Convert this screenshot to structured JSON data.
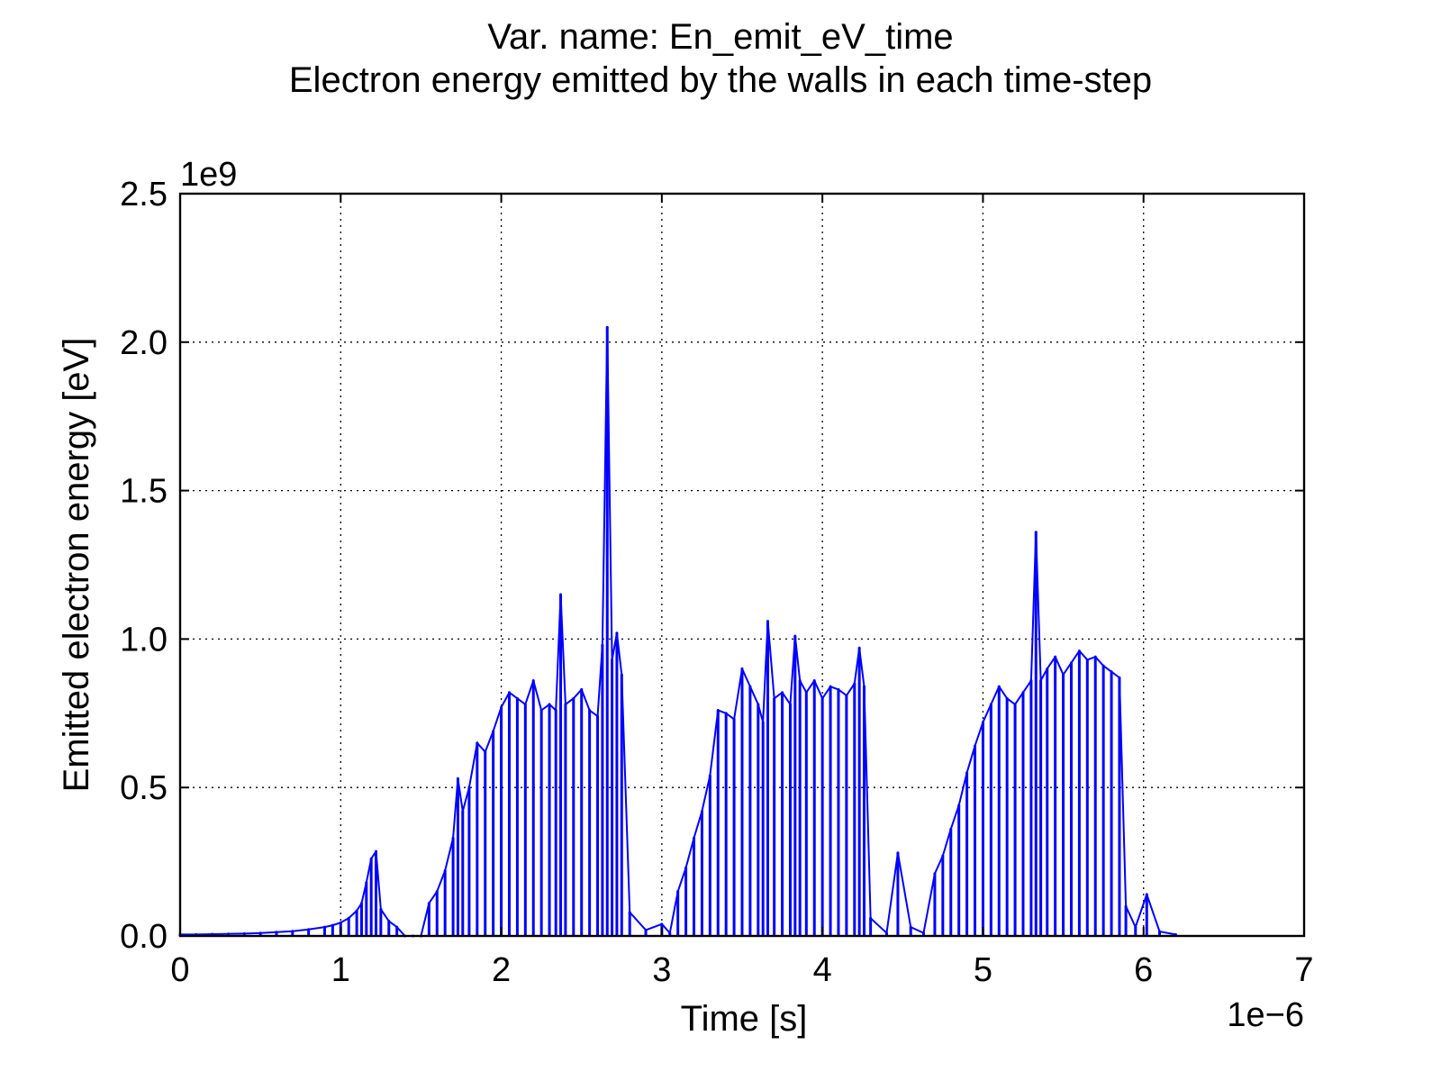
{
  "chart_data": {
    "type": "line",
    "title": "Var. name: En_emit_eV_time",
    "subtitle": "Electron energy emitted by the walls in each time-step",
    "xlabel": "Time [s]",
    "ylabel": "Emitted electron energy [eV]",
    "x_offset_label": "1e−6",
    "y_offset_label": "1e9",
    "xlim": [
      0,
      7
    ],
    "ylim": [
      0,
      2.5
    ],
    "x_ticks": [
      0,
      1,
      2,
      3,
      4,
      5,
      6,
      7
    ],
    "x_tick_labels": [
      "0",
      "1",
      "2",
      "3",
      "4",
      "5",
      "6",
      "7"
    ],
    "y_ticks": [
      0,
      0.5,
      1,
      1.5,
      2,
      2.5
    ],
    "y_tick_labels": [
      "0.0",
      "0.5",
      "1.0",
      "1.5",
      "2.0",
      "2.5"
    ],
    "grid": true,
    "series": [
      {
        "color": "#0000ff",
        "x_units": "1e-6 s",
        "y_units": "1e9 eV",
        "x": [
          0.0,
          0.1,
          0.2,
          0.3,
          0.4,
          0.5,
          0.6,
          0.7,
          0.8,
          0.9,
          0.95,
          1.0,
          1.05,
          1.1,
          1.13,
          1.16,
          1.19,
          1.22,
          1.25,
          1.3,
          1.35,
          1.4,
          1.45,
          1.5,
          1.55,
          1.6,
          1.65,
          1.7,
          1.73,
          1.76,
          1.8,
          1.85,
          1.9,
          1.95,
          2.0,
          2.05,
          2.1,
          2.15,
          2.2,
          2.25,
          2.3,
          2.34,
          2.37,
          2.4,
          2.45,
          2.5,
          2.55,
          2.6,
          2.63,
          2.66,
          2.69,
          2.72,
          2.75,
          2.8,
          2.9,
          3.0,
          3.05,
          3.1,
          3.15,
          3.2,
          3.25,
          3.3,
          3.35,
          3.4,
          3.45,
          3.5,
          3.55,
          3.6,
          3.63,
          3.66,
          3.7,
          3.75,
          3.8,
          3.83,
          3.86,
          3.9,
          3.95,
          4.0,
          4.05,
          4.1,
          4.15,
          4.2,
          4.23,
          4.26,
          4.3,
          4.4,
          4.47,
          4.55,
          4.63,
          4.7,
          4.75,
          4.8,
          4.85,
          4.9,
          4.95,
          5.0,
          5.05,
          5.1,
          5.15,
          5.2,
          5.25,
          5.3,
          5.33,
          5.36,
          5.4,
          5.45,
          5.5,
          5.55,
          5.6,
          5.65,
          5.7,
          5.75,
          5.8,
          5.85,
          5.89,
          5.95,
          6.02,
          6.1,
          6.2
        ],
        "y": [
          0.005,
          0.005,
          0.006,
          0.007,
          0.008,
          0.01,
          0.013,
          0.016,
          0.022,
          0.03,
          0.036,
          0.045,
          0.06,
          0.085,
          0.11,
          0.18,
          0.26,
          0.285,
          0.09,
          0.05,
          0.03,
          0.0,
          0.0,
          0.0,
          0.11,
          0.15,
          0.22,
          0.33,
          0.53,
          0.42,
          0.5,
          0.65,
          0.62,
          0.69,
          0.77,
          0.82,
          0.8,
          0.78,
          0.86,
          0.76,
          0.78,
          0.76,
          1.15,
          0.78,
          0.8,
          0.83,
          0.76,
          0.74,
          0.98,
          2.05,
          0.93,
          1.02,
          0.88,
          0.08,
          0.02,
          0.04,
          0.01,
          0.15,
          0.23,
          0.33,
          0.42,
          0.54,
          0.76,
          0.75,
          0.73,
          0.9,
          0.84,
          0.78,
          0.72,
          1.06,
          0.8,
          0.82,
          0.78,
          1.01,
          0.86,
          0.82,
          0.86,
          0.8,
          0.84,
          0.83,
          0.81,
          0.85,
          0.97,
          0.84,
          0.06,
          0.01,
          0.28,
          0.03,
          0.01,
          0.21,
          0.27,
          0.36,
          0.44,
          0.55,
          0.64,
          0.72,
          0.78,
          0.84,
          0.8,
          0.78,
          0.82,
          0.86,
          1.36,
          0.86,
          0.9,
          0.94,
          0.88,
          0.92,
          0.96,
          0.93,
          0.94,
          0.91,
          0.89,
          0.87,
          0.1,
          0.03,
          0.14,
          0.015,
          0.005
        ]
      }
    ]
  }
}
